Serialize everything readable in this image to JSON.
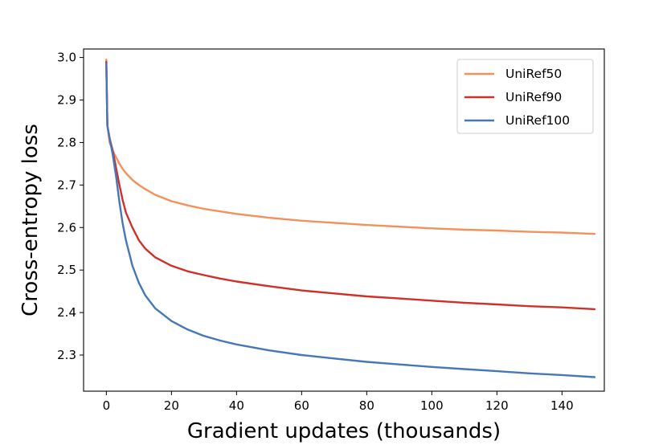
{
  "chart_data": {
    "type": "line",
    "title": "",
    "xlabel": "Gradient updates (thousands)",
    "ylabel": "Cross-entropy loss",
    "xlim": [
      -7,
      153
    ],
    "ylim": [
      2.215,
      3.02
    ],
    "grid": false,
    "legend_position": "top-right",
    "x_ticks": [
      0,
      20,
      40,
      60,
      80,
      100,
      120,
      140
    ],
    "y_ticks": [
      2.3,
      2.4,
      2.5,
      2.6,
      2.7,
      2.8,
      2.9,
      3.0
    ],
    "y_tick_labels": [
      "2.3",
      "2.4",
      "2.5",
      "2.6",
      "2.7",
      "2.8",
      "2.9",
      "3.0"
    ],
    "x": [
      0,
      0.3,
      1,
      2,
      3,
      4,
      5,
      6,
      8,
      10,
      12,
      15,
      20,
      25,
      30,
      35,
      40,
      50,
      60,
      70,
      80,
      90,
      100,
      110,
      120,
      130,
      140,
      150
    ],
    "series": [
      {
        "name": "UniRef50",
        "color": "#f4905a",
        "values": [
          2.995,
          2.84,
          2.8,
          2.78,
          2.765,
          2.75,
          2.738,
          2.728,
          2.712,
          2.7,
          2.69,
          2.677,
          2.662,
          2.652,
          2.644,
          2.638,
          2.632,
          2.623,
          2.616,
          2.611,
          2.606,
          2.602,
          2.598,
          2.595,
          2.593,
          2.59,
          2.588,
          2.585
        ]
      },
      {
        "name": "UniRef90",
        "color": "#d03028",
        "values": [
          2.99,
          2.84,
          2.81,
          2.78,
          2.74,
          2.7,
          2.665,
          2.635,
          2.6,
          2.57,
          2.55,
          2.53,
          2.51,
          2.497,
          2.488,
          2.48,
          2.473,
          2.462,
          2.452,
          2.445,
          2.438,
          2.433,
          2.428,
          2.423,
          2.419,
          2.415,
          2.412,
          2.408
        ]
      },
      {
        "name": "UniRef100",
        "color": "#4677b8",
        "values": [
          2.985,
          2.84,
          2.81,
          2.77,
          2.72,
          2.66,
          2.61,
          2.57,
          2.51,
          2.47,
          2.44,
          2.41,
          2.38,
          2.36,
          2.345,
          2.334,
          2.325,
          2.311,
          2.3,
          2.292,
          2.284,
          2.278,
          2.272,
          2.267,
          2.262,
          2.257,
          2.253,
          2.248
        ]
      }
    ]
  }
}
